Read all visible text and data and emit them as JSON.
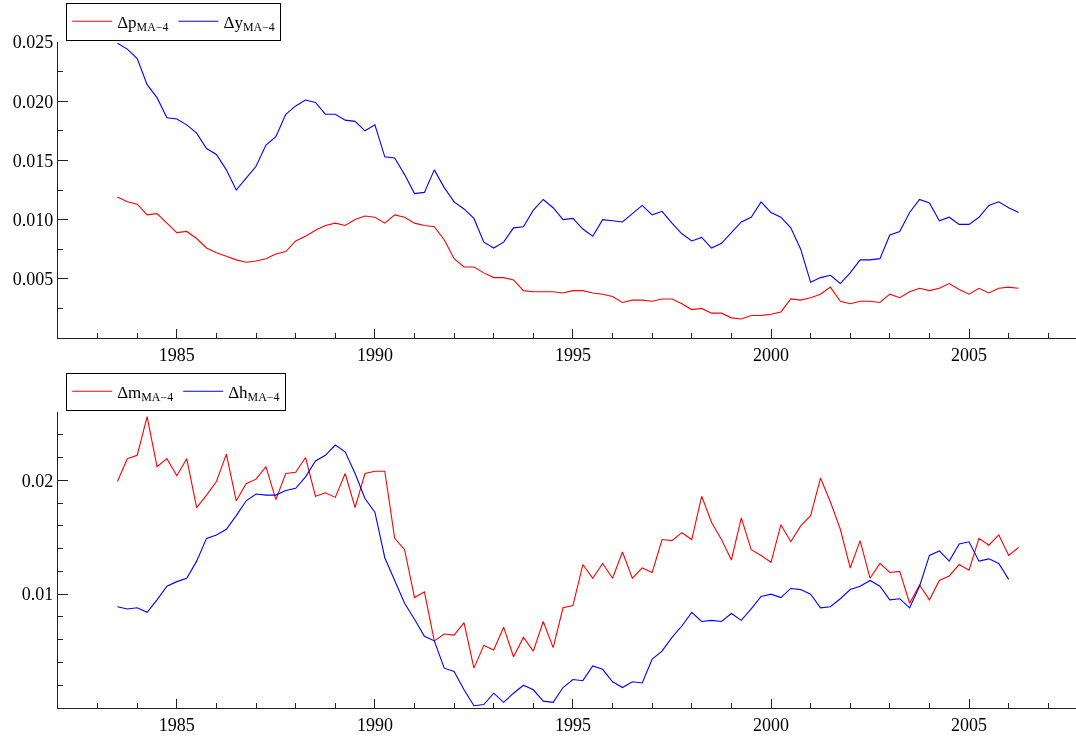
{
  "chart_data": [
    {
      "type": "line",
      "legend": "top left",
      "grid": false,
      "x": [
        1983.5,
        1983.75,
        1984,
        1984.25,
        1984.5,
        1984.75,
        1985,
        1985.25,
        1985.5,
        1985.75,
        1986,
        1986.25,
        1986.5,
        1986.75,
        1987,
        1987.25,
        1987.5,
        1987.75,
        1988,
        1988.25,
        1988.5,
        1988.75,
        1989,
        1989.25,
        1989.5,
        1989.75,
        1990,
        1990.25,
        1990.5,
        1990.75,
        1991,
        1991.25,
        1991.5,
        1991.75,
        1992,
        1992.25,
        1992.5,
        1992.75,
        1993,
        1993.25,
        1993.5,
        1993.75,
        1994,
        1994.25,
        1994.5,
        1994.75,
        1995,
        1995.25,
        1995.5,
        1995.75,
        1996,
        1996.25,
        1996.5,
        1996.75,
        1997,
        1997.25,
        1997.5,
        1997.75,
        1998,
        1998.25,
        1998.5,
        1998.75,
        1999,
        1999.25,
        1999.5,
        1999.75,
        2000,
        2000.25,
        2000.5,
        2000.75,
        2001,
        2001.25,
        2001.5,
        2001.75,
        2002,
        2002.25,
        2002.5,
        2002.75,
        2003,
        2003.25,
        2003.5,
        2003.75,
        2004,
        2004.25,
        2004.5,
        2004.75,
        2005,
        2005.25,
        2005.5,
        2005.75,
        2006,
        2006.25
      ],
      "series": [
        {
          "name": "Δp$_{MA−4}$",
          "color": "#ff0000",
          "values": [
            0.0119,
            0.0115,
            0.0113,
            0.0104,
            0.0105,
            0.0097,
            0.0089,
            0.009,
            0.0084,
            0.0076,
            0.0072,
            0.0069,
            0.0066,
            0.0064,
            0.0065,
            0.0067,
            0.0071,
            0.0073,
            0.0082,
            0.0086,
            0.0091,
            0.0095,
            0.0097,
            0.0095,
            0.01,
            0.0103,
            0.0102,
            0.0097,
            0.0104,
            0.0102,
            0.0097,
            0.0095,
            0.0094,
            0.0083,
            0.0067,
            0.006,
            0.006,
            0.0055,
            0.0051,
            0.0051,
            0.0049,
            0.004,
            0.0039,
            0.0039,
            0.0039,
            0.0038,
            0.004,
            0.004,
            0.0038,
            0.0037,
            0.0035,
            0.003,
            0.0032,
            0.0032,
            0.0031,
            0.0033,
            0.0033,
            0.0029,
            0.0024,
            0.0025,
            0.0021,
            0.0021,
            0.0017,
            0.0016,
            0.0019,
            0.0019,
            0.002,
            0.0022,
            0.0033,
            0.0032,
            0.0034,
            0.0037,
            0.0043,
            0.0031,
            0.0029,
            0.0031,
            0.0031,
            0.003,
            0.0037,
            0.0034,
            0.0039,
            0.0042,
            0.004,
            0.0042,
            0.0046,
            0.0041,
            0.0037,
            0.0042,
            0.0038,
            0.0042,
            0.0043,
            0.0042
          ]
        },
        {
          "name": "Δy$_{MA−4}$",
          "color": "#0000ff",
          "values": [
            0.0249,
            0.0244,
            0.0236,
            0.0214,
            0.0203,
            0.0186,
            0.0185,
            0.018,
            0.0173,
            0.016,
            0.0155,
            0.0142,
            0.0125,
            0.0135,
            0.0145,
            0.0163,
            0.017,
            0.0189,
            0.0196,
            0.0201,
            0.0199,
            0.0189,
            0.0189,
            0.0184,
            0.0183,
            0.0175,
            0.018,
            0.0153,
            0.0152,
            0.0138,
            0.0122,
            0.0123,
            0.0142,
            0.0127,
            0.0115,
            0.0109,
            0.0101,
            0.0081,
            0.0076,
            0.0081,
            0.0093,
            0.0094,
            0.0108,
            0.0117,
            0.011,
            0.01,
            0.0101,
            0.0092,
            0.0086,
            0.01,
            0.0099,
            0.0098,
            0.0105,
            0.0112,
            0.0104,
            0.0107,
            0.0097,
            0.0088,
            0.0082,
            0.0085,
            0.0076,
            0.008,
            0.0089,
            0.0098,
            0.0102,
            0.0115,
            0.0106,
            0.0102,
            0.0093,
            0.0075,
            0.0047,
            0.0051,
            0.0053,
            0.0046,
            0.0055,
            0.0066,
            0.0066,
            0.0067,
            0.0087,
            0.009,
            0.0106,
            0.0117,
            0.0114,
            0.0099,
            0.0102,
            0.0096,
            0.0096,
            0.0102,
            0.0112,
            0.0115,
            0.011,
            0.0106
          ]
        }
      ],
      "xlim": [
        1982,
        2007.7
      ],
      "xticks": [
        {
          "value": 1983,
          "label": null
        },
        {
          "value": 1984,
          "label": null
        },
        1985,
        {
          "value": 1986,
          "label": null
        },
        {
          "value": 1987,
          "label": null
        },
        {
          "value": 1988,
          "label": null
        },
        {
          "value": 1989,
          "label": null
        },
        1990,
        {
          "value": 1991,
          "label": null
        },
        {
          "value": 1992,
          "label": null
        },
        {
          "value": 1993,
          "label": null
        },
        {
          "value": 1994,
          "label": null
        },
        1995,
        {
          "value": 1996,
          "label": null
        },
        {
          "value": 1997,
          "label": null
        },
        {
          "value": 1998,
          "label": null
        },
        {
          "value": 1999,
          "label": null
        },
        2000,
        {
          "value": 2001,
          "label": null
        },
        {
          "value": 2002,
          "label": null
        },
        {
          "value": 2003,
          "label": null
        },
        {
          "value": 2004,
          "label": null
        },
        2005,
        {
          "value": 2006,
          "label": null
        },
        {
          "value": 2007,
          "label": null
        }
      ],
      "ylim": [
        0,
        0.025
      ],
      "yticks": [
        {
          "value": 0.0025,
          "label": null
        },
        0.005,
        {
          "value": 0.0075,
          "label": null
        },
        {
          "value": 0.01,
          "label": "0.010"
        },
        {
          "value": 0.0125,
          "label": null
        },
        0.015,
        {
          "value": 0.0175,
          "label": null
        },
        {
          "value": 0.02,
          "label": "0.020"
        },
        {
          "value": 0.0225,
          "label": null
        },
        0.025
      ]
    },
    {
      "type": "line",
      "legend": "top left",
      "grid": false,
      "x": [
        1983.5,
        1983.75,
        1984,
        1984.25,
        1984.5,
        1984.75,
        1985,
        1985.25,
        1985.5,
        1985.75,
        1986,
        1986.25,
        1986.5,
        1986.75,
        1987,
        1987.25,
        1987.5,
        1987.75,
        1988,
        1988.25,
        1988.5,
        1988.75,
        1989,
        1989.25,
        1989.5,
        1989.75,
        1990,
        1990.25,
        1990.5,
        1990.75,
        1991,
        1991.25,
        1991.5,
        1991.75,
        1992,
        1992.25,
        1992.5,
        1992.75,
        1993,
        1993.25,
        1993.5,
        1993.75,
        1994,
        1994.25,
        1994.5,
        1994.75,
        1995,
        1995.25,
        1995.5,
        1995.75,
        1996,
        1996.25,
        1996.5,
        1996.75,
        1997,
        1997.25,
        1997.5,
        1997.75,
        1998,
        1998.25,
        1998.5,
        1998.75,
        1999,
        1999.25,
        1999.5,
        1999.75,
        2000,
        2000.25,
        2000.5,
        2000.75,
        2001,
        2001.25,
        2001.5,
        2001.75,
        2002,
        2002.25,
        2002.5,
        2002.75,
        2003,
        2003.25,
        2003.5,
        2003.75,
        2004,
        2004.25,
        2004.5,
        2004.75,
        2005,
        2005.25,
        2005.5,
        2005.75,
        2006,
        2006.25
      ],
      "series": [
        {
          "name": "Δm$_{MA−4}$",
          "color": "#ff0000",
          "values": [
            0.0199,
            0.0219,
            0.0222,
            0.0256,
            0.0212,
            0.0219,
            0.0204,
            0.0219,
            0.0176,
            0.0187,
            0.0199,
            0.0223,
            0.0182,
            0.0197,
            0.0201,
            0.0212,
            0.0183,
            0.0206,
            0.0207,
            0.022,
            0.0186,
            0.0189,
            0.0185,
            0.0206,
            0.0176,
            0.0206,
            0.0208,
            0.0208,
            0.0149,
            0.0139,
            0.0097,
            0.0102,
            0.0059,
            0.0065,
            0.0064,
            0.0075,
            0.0035,
            0.0055,
            0.0051,
            0.0071,
            0.0045,
            0.0062,
            0.005,
            0.0076,
            0.0053,
            0.0088,
            0.009,
            0.0126,
            0.0114,
            0.0127,
            0.0114,
            0.0137,
            0.0114,
            0.0123,
            0.0119,
            0.0148,
            0.0147,
            0.0154,
            0.0148,
            0.0186,
            0.0163,
            0.0148,
            0.013,
            0.0167,
            0.0139,
            0.0134,
            0.0128,
            0.0161,
            0.0146,
            0.016,
            0.0169,
            0.0202,
            0.0181,
            0.0157,
            0.0123,
            0.0147,
            0.0114,
            0.0127,
            0.0119,
            0.012,
            0.0092,
            0.0108,
            0.0095,
            0.0112,
            0.0116,
            0.0126,
            0.0121,
            0.0149,
            0.0143,
            0.0152,
            0.0134,
            0.0141
          ]
        },
        {
          "name": "Δh$_{MA−4}$",
          "color": "#0000ff",
          "values": [
            0.0089,
            0.0087,
            0.0088,
            0.0084,
            0.0095,
            0.0107,
            0.0111,
            0.0114,
            0.0129,
            0.0149,
            0.0152,
            0.0157,
            0.0169,
            0.0182,
            0.0188,
            0.0187,
            0.0187,
            0.0191,
            0.0193,
            0.0203,
            0.0217,
            0.0222,
            0.0231,
            0.0225,
            0.0206,
            0.0184,
            0.0172,
            0.0132,
            0.0112,
            0.0092,
            0.0078,
            0.0063,
            0.0059,
            0.0035,
            0.0032,
            0.0016,
            0.0002,
            0.0003,
            0.0013,
            0.0005,
            0.0013,
            0.002,
            0.0016,
            0.0006,
            0.0005,
            0.0018,
            0.0025,
            0.0024,
            0.0037,
            0.0034,
            0.0023,
            0.0018,
            0.0023,
            0.0022,
            0.0043,
            0.005,
            0.0062,
            0.0072,
            0.0084,
            0.0076,
            0.0077,
            0.0076,
            0.0083,
            0.0077,
            0.0087,
            0.0098,
            0.01,
            0.0097,
            0.0105,
            0.0104,
            0.01,
            0.0088,
            0.0089,
            0.0096,
            0.0104,
            0.0107,
            0.0112,
            0.0107,
            0.0095,
            0.0096,
            0.0088,
            0.0107,
            0.0134,
            0.0138,
            0.0129,
            0.0144,
            0.0146,
            0.0129,
            0.0131,
            0.0127,
            0.0113,
            null
          ]
        }
      ],
      "xlim": [
        1982,
        2007.7
      ],
      "xticks": [
        {
          "value": 1983,
          "label": null
        },
        {
          "value": 1984,
          "label": null
        },
        1985,
        {
          "value": 1986,
          "label": null
        },
        {
          "value": 1987,
          "label": null
        },
        {
          "value": 1988,
          "label": null
        },
        {
          "value": 1989,
          "label": null
        },
        1990,
        {
          "value": 1991,
          "label": null
        },
        {
          "value": 1992,
          "label": null
        },
        {
          "value": 1993,
          "label": null
        },
        {
          "value": 1994,
          "label": null
        },
        1995,
        {
          "value": 1996,
          "label": null
        },
        {
          "value": 1997,
          "label": null
        },
        {
          "value": 1998,
          "label": null
        },
        {
          "value": 1999,
          "label": null
        },
        2000,
        {
          "value": 2001,
          "label": null
        },
        {
          "value": 2002,
          "label": null
        },
        {
          "value": 2003,
          "label": null
        },
        {
          "value": 2004,
          "label": null
        },
        2005,
        {
          "value": 2006,
          "label": null
        },
        {
          "value": 2007,
          "label": null
        }
      ],
      "ylim": [
        0,
        0.026
      ],
      "yticks": [
        {
          "value": 0.002,
          "label": null
        },
        {
          "value": 0.004,
          "label": null
        },
        {
          "value": 0.006,
          "label": null
        },
        {
          "value": 0.008,
          "label": null
        },
        0.01,
        {
          "value": 0.012,
          "label": null
        },
        {
          "value": 0.014,
          "label": null
        },
        {
          "value": 0.016,
          "label": null
        },
        {
          "value": 0.018,
          "label": null
        },
        0.02,
        {
          "value": 0.022,
          "label": null
        },
        {
          "value": 0.024,
          "label": null
        }
      ]
    }
  ]
}
